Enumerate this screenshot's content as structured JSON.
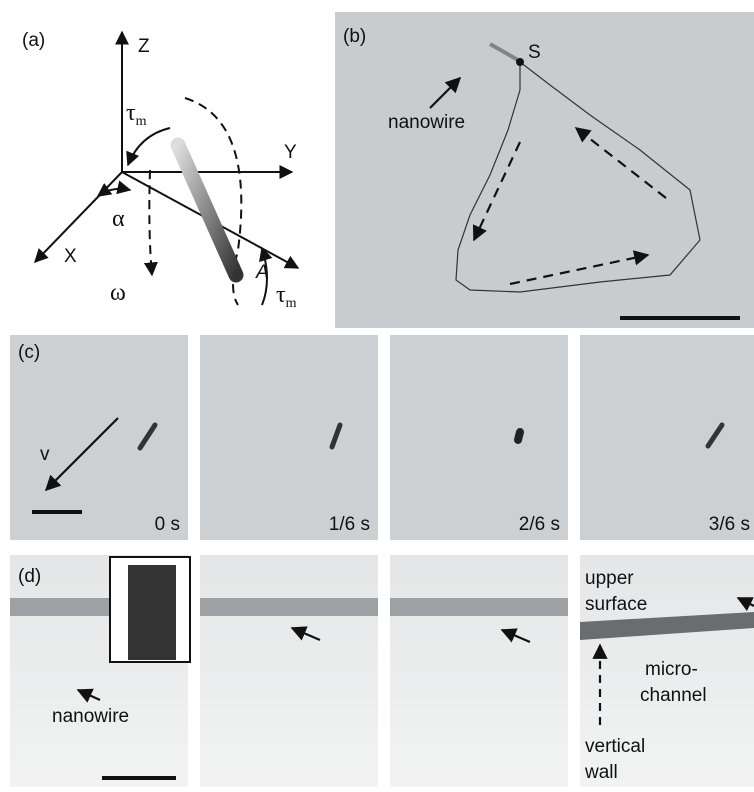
{
  "panels": {
    "a": {
      "label": "(a)",
      "axes": {
        "z": "Z",
        "y": "Y",
        "x": "X",
        "a": "A"
      },
      "torque": {
        "symbol": "τ",
        "subscript": "m"
      },
      "angle": "α",
      "rotation": "ω"
    },
    "b": {
      "label": "(b)",
      "start": "S",
      "annotation": "nanowire"
    },
    "c": {
      "label": "(c)",
      "velocity": "v",
      "times": [
        "0 s",
        "1/6 s",
        "2/6 s",
        "3/6 s"
      ]
    },
    "d": {
      "label": "(d)",
      "nanowire": "nanowire",
      "upper_surface": [
        "upper",
        "surface"
      ],
      "micro_channel": [
        "micro-",
        "channel"
      ],
      "vertical_wall": [
        "vertical",
        "wall"
      ]
    }
  }
}
